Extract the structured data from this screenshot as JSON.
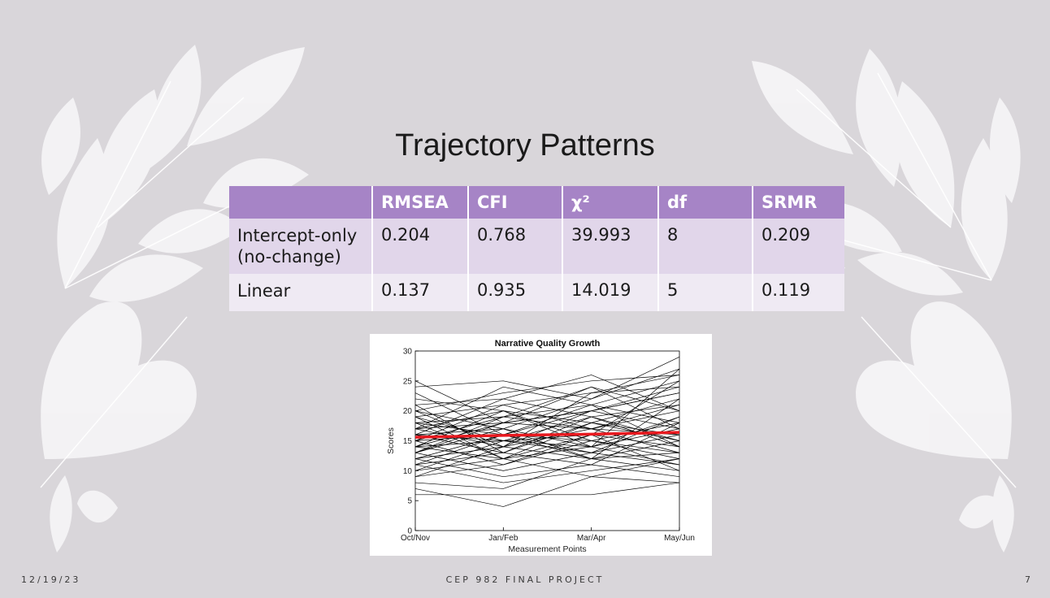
{
  "slide": {
    "title": "Trajectory Patterns",
    "footer_date": "12/19/23",
    "footer_center": "CEP 982 FINAL PROJECT",
    "page_number": "7"
  },
  "table": {
    "headers": [
      "",
      "RMSEA",
      "CFI",
      "χ²",
      "df",
      "SRMR"
    ],
    "rows": [
      {
        "label": "Intercept-only (no-change)",
        "values": [
          "0.204",
          "0.768",
          "39.993",
          "8",
          "0.209"
        ]
      },
      {
        "label": "Linear",
        "values": [
          "0.137",
          "0.935",
          "14.019",
          "5",
          "0.119"
        ]
      }
    ]
  },
  "colors": {
    "header": "#a684c6",
    "row_odd": "#e1d6ea",
    "row_even": "#efeaf3",
    "trend": "#e8191f",
    "lines": "#000000"
  },
  "chart_data": {
    "type": "line",
    "title": "Narrative Quality Growth",
    "xlabel": "Measurement Points",
    "ylabel": "Scores",
    "categories": [
      "Oct/Nov",
      "Jan/Feb",
      "Mar/Apr",
      "May/Jun"
    ],
    "ylim": [
      0,
      30
    ],
    "yticks": [
      0,
      5,
      10,
      15,
      20,
      25,
      30
    ],
    "grid": false,
    "trend": {
      "values": [
        15.6,
        15.9,
        16.1,
        16.4
      ]
    },
    "series": [
      {
        "values": [
          25,
          18,
          20,
          24
        ]
      },
      {
        "values": [
          24,
          25,
          22,
          29
        ]
      },
      {
        "values": [
          23,
          16,
          21,
          18
        ]
      },
      {
        "values": [
          22,
          20,
          14,
          27
        ]
      },
      {
        "values": [
          21,
          13,
          18,
          15
        ]
      },
      {
        "values": [
          21,
          22,
          26,
          20
        ]
      },
      {
        "values": [
          20,
          17,
          12,
          22
        ]
      },
      {
        "values": [
          20,
          14,
          23,
          26
        ]
      },
      {
        "values": [
          19,
          21,
          17,
          13
        ]
      },
      {
        "values": [
          19,
          15,
          19,
          21
        ]
      },
      {
        "values": [
          18,
          19,
          24,
          17
        ]
      },
      {
        "values": [
          18,
          12,
          16,
          25
        ]
      },
      {
        "values": [
          18,
          16,
          13,
          19
        ]
      },
      {
        "values": [
          17,
          20,
          15,
          12
        ]
      },
      {
        "values": [
          17,
          14,
          20,
          23
        ]
      },
      {
        "values": [
          17,
          18,
          17,
          16
        ]
      },
      {
        "values": [
          16,
          22,
          19,
          14
        ]
      },
      {
        "values": [
          16,
          13,
          11,
          18
        ]
      },
      {
        "values": [
          16,
          17,
          22,
          27
        ]
      },
      {
        "values": [
          16,
          15,
          14,
          11
        ]
      },
      {
        "values": [
          15,
          19,
          17,
          20
        ]
      },
      {
        "values": [
          15,
          11,
          15,
          13
        ]
      },
      {
        "values": [
          15,
          21,
          23,
          24
        ]
      },
      {
        "values": [
          15,
          16,
          12,
          15
        ]
      },
      {
        "values": [
          14,
          18,
          20,
          17
        ]
      },
      {
        "values": [
          14,
          12,
          9,
          12
        ]
      },
      {
        "values": [
          14,
          20,
          18,
          22
        ]
      },
      {
        "values": [
          14,
          15,
          16,
          10
        ]
      },
      {
        "values": [
          13,
          17,
          14,
          19
        ]
      },
      {
        "values": [
          13,
          10,
          13,
          16
        ]
      },
      {
        "values": [
          13,
          19,
          21,
          14
        ]
      },
      {
        "values": [
          12,
          14,
          17,
          21
        ]
      },
      {
        "values": [
          12,
          9,
          11,
          9
        ]
      },
      {
        "values": [
          12,
          16,
          15,
          18
        ]
      },
      {
        "values": [
          11,
          13,
          19,
          15
        ]
      },
      {
        "values": [
          11,
          8,
          10,
          12
        ]
      },
      {
        "values": [
          10,
          12,
          14,
          17
        ]
      },
      {
        "values": [
          10,
          15,
          13,
          11
        ]
      },
      {
        "values": [
          9,
          11,
          16,
          14
        ]
      },
      {
        "values": [
          8,
          7,
          12,
          10
        ]
      },
      {
        "values": [
          7,
          4,
          9,
          8
        ]
      },
      {
        "values": [
          6,
          6,
          6,
          8
        ]
      },
      {
        "values": [
          20,
          23,
          25,
          26
        ]
      },
      {
        "values": [
          19,
          12,
          18,
          16
        ]
      },
      {
        "values": [
          17,
          24,
          21,
          25
        ]
      },
      {
        "values": [
          13,
          18,
          24,
          20
        ]
      },
      {
        "values": [
          11,
          16,
          20,
          23
        ]
      },
      {
        "values": [
          9,
          14,
          12,
          13
        ]
      }
    ]
  }
}
